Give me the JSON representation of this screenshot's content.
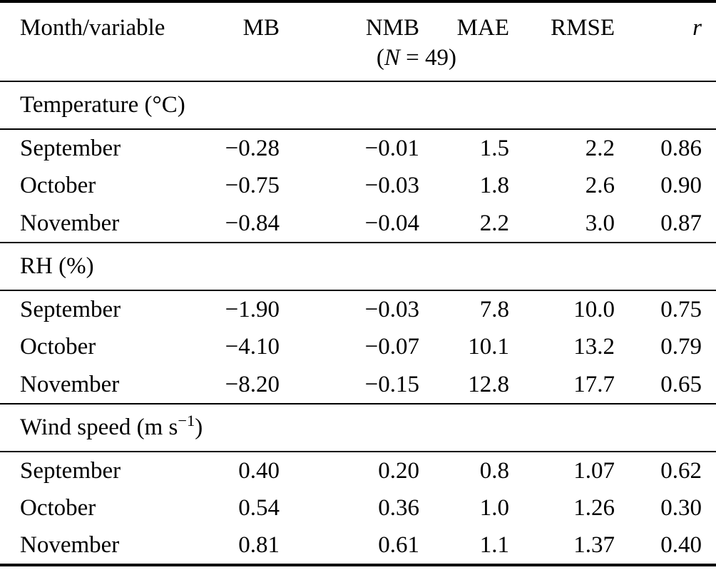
{
  "table": {
    "header": {
      "month_variable": "Month/variable",
      "mb": "MB",
      "nmb": "NMB",
      "n_note_prefix": "(",
      "n_note_italic": "N",
      "n_note_suffix": " = 49)",
      "mae": "MAE",
      "rmse": "RMSE",
      "r": "r"
    },
    "sections": [
      {
        "label_main": "Temperature (°C)",
        "label_sup": "",
        "label_end": "",
        "rows": [
          {
            "month": "September",
            "mb": "−0.28",
            "nmb": "−0.01",
            "mae": "1.5",
            "rmse": "2.2",
            "r": "0.86"
          },
          {
            "month": "October",
            "mb": "−0.75",
            "nmb": "−0.03",
            "mae": "1.8",
            "rmse": "2.6",
            "r": "0.90"
          },
          {
            "month": "November",
            "mb": "−0.84",
            "nmb": "−0.04",
            "mae": "2.2",
            "rmse": "3.0",
            "r": "0.87"
          }
        ]
      },
      {
        "label_main": "RH (%)",
        "label_sup": "",
        "label_end": "",
        "rows": [
          {
            "month": "September",
            "mb": "−1.90",
            "nmb": "−0.03",
            "mae": "7.8",
            "rmse": "10.0",
            "r": "0.75"
          },
          {
            "month": "October",
            "mb": "−4.10",
            "nmb": "−0.07",
            "mae": "10.1",
            "rmse": "13.2",
            "r": "0.79"
          },
          {
            "month": "November",
            "mb": "−8.20",
            "nmb": "−0.15",
            "mae": "12.8",
            "rmse": "17.7",
            "r": "0.65"
          }
        ]
      },
      {
        "label_main": "Wind speed (m s",
        "label_sup": "−1",
        "label_end": ")",
        "rows": [
          {
            "month": "September",
            "mb": "0.40",
            "nmb": "0.20",
            "mae": "0.8",
            "rmse": "1.07",
            "r": "0.62"
          },
          {
            "month": "October",
            "mb": "0.54",
            "nmb": "0.36",
            "mae": "1.0",
            "rmse": "1.26",
            "r": "0.30"
          },
          {
            "month": "November",
            "mb": "0.81",
            "nmb": "0.61",
            "mae": "1.1",
            "rmse": "1.37",
            "r": "0.40"
          }
        ]
      }
    ]
  }
}
